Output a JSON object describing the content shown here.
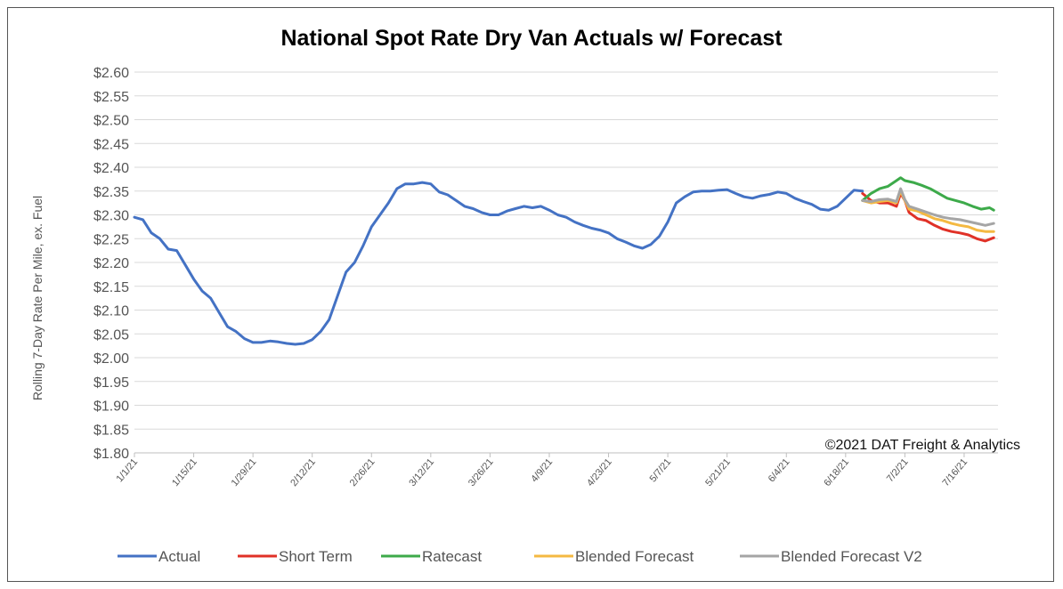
{
  "chart_data": {
    "type": "line",
    "title": "National Spot Rate Dry Van Actuals w/ Forecast",
    "ylabel": "Rolling 7-Day Rate Per Mile, ex. Fuel",
    "xlabel": "",
    "annotation": "©2021 DAT Freight & Analytics",
    "ylim": [
      1.8,
      2.6
    ],
    "xlim": [
      "2021-01-01",
      "2021-07-24"
    ],
    "y_ticks": [
      "$1.80",
      "$1.85",
      "$1.90",
      "$1.95",
      "$2.00",
      "$2.05",
      "$2.10",
      "$2.15",
      "$2.20",
      "$2.25",
      "$2.30",
      "$2.35",
      "$2.40",
      "$2.45",
      "$2.50",
      "$2.55",
      "$2.60"
    ],
    "x_ticks": [
      {
        "date": "2021-01-01",
        "label": "1/1/21"
      },
      {
        "date": "2021-01-15",
        "label": "1/15/21"
      },
      {
        "date": "2021-01-29",
        "label": "1/29/21"
      },
      {
        "date": "2021-02-12",
        "label": "2/12/21"
      },
      {
        "date": "2021-02-26",
        "label": "2/26/21"
      },
      {
        "date": "2021-03-12",
        "label": "3/12/21"
      },
      {
        "date": "2021-03-26",
        "label": "3/26/21"
      },
      {
        "date": "2021-04-09",
        "label": "4/9/21"
      },
      {
        "date": "2021-04-23",
        "label": "4/23/21"
      },
      {
        "date": "2021-05-07",
        "label": "5/7/21"
      },
      {
        "date": "2021-05-21",
        "label": "5/21/21"
      },
      {
        "date": "2021-06-04",
        "label": "6/4/21"
      },
      {
        "date": "2021-06-18",
        "label": "6/18/21"
      },
      {
        "date": "2021-07-02",
        "label": "7/2/21"
      },
      {
        "date": "2021-07-16",
        "label": "7/16/21"
      }
    ],
    "grid": true,
    "legend_position": "bottom",
    "series": [
      {
        "name": "Actual",
        "color": "#4472C4",
        "points": [
          [
            "2021-01-01",
            2.295
          ],
          [
            "2021-01-03",
            2.29
          ],
          [
            "2021-01-05",
            2.262
          ],
          [
            "2021-01-07",
            2.25
          ],
          [
            "2021-01-09",
            2.228
          ],
          [
            "2021-01-11",
            2.225
          ],
          [
            "2021-01-13",
            2.195
          ],
          [
            "2021-01-15",
            2.165
          ],
          [
            "2021-01-17",
            2.14
          ],
          [
            "2021-01-19",
            2.125
          ],
          [
            "2021-01-21",
            2.095
          ],
          [
            "2021-01-23",
            2.065
          ],
          [
            "2021-01-25",
            2.055
          ],
          [
            "2021-01-27",
            2.04
          ],
          [
            "2021-01-29",
            2.032
          ],
          [
            "2021-01-31",
            2.032
          ],
          [
            "2021-02-02",
            2.035
          ],
          [
            "2021-02-04",
            2.033
          ],
          [
            "2021-02-06",
            2.03
          ],
          [
            "2021-02-08",
            2.028
          ],
          [
            "2021-02-10",
            2.03
          ],
          [
            "2021-02-12",
            2.038
          ],
          [
            "2021-02-14",
            2.055
          ],
          [
            "2021-02-16",
            2.08
          ],
          [
            "2021-02-18",
            2.13
          ],
          [
            "2021-02-20",
            2.18
          ],
          [
            "2021-02-22",
            2.2
          ],
          [
            "2021-02-24",
            2.235
          ],
          [
            "2021-02-26",
            2.275
          ],
          [
            "2021-02-28",
            2.3
          ],
          [
            "2021-03-02",
            2.325
          ],
          [
            "2021-03-04",
            2.355
          ],
          [
            "2021-03-06",
            2.365
          ],
          [
            "2021-03-08",
            2.365
          ],
          [
            "2021-03-10",
            2.368
          ],
          [
            "2021-03-12",
            2.365
          ],
          [
            "2021-03-14",
            2.348
          ],
          [
            "2021-03-16",
            2.342
          ],
          [
            "2021-03-18",
            2.33
          ],
          [
            "2021-03-20",
            2.318
          ],
          [
            "2021-03-22",
            2.313
          ],
          [
            "2021-03-24",
            2.305
          ],
          [
            "2021-03-26",
            2.3
          ],
          [
            "2021-03-28",
            2.3
          ],
          [
            "2021-03-30",
            2.308
          ],
          [
            "2021-04-01",
            2.313
          ],
          [
            "2021-04-03",
            2.318
          ],
          [
            "2021-04-05",
            2.315
          ],
          [
            "2021-04-07",
            2.318
          ],
          [
            "2021-04-09",
            2.31
          ],
          [
            "2021-04-11",
            2.3
          ],
          [
            "2021-04-13",
            2.295
          ],
          [
            "2021-04-15",
            2.285
          ],
          [
            "2021-04-17",
            2.278
          ],
          [
            "2021-04-19",
            2.272
          ],
          [
            "2021-04-21",
            2.268
          ],
          [
            "2021-04-23",
            2.262
          ],
          [
            "2021-04-25",
            2.25
          ],
          [
            "2021-04-27",
            2.243
          ],
          [
            "2021-04-29",
            2.235
          ],
          [
            "2021-05-01",
            2.23
          ],
          [
            "2021-05-03",
            2.238
          ],
          [
            "2021-05-05",
            2.255
          ],
          [
            "2021-05-07",
            2.285
          ],
          [
            "2021-05-09",
            2.325
          ],
          [
            "2021-05-11",
            2.338
          ],
          [
            "2021-05-13",
            2.348
          ],
          [
            "2021-05-15",
            2.35
          ],
          [
            "2021-05-17",
            2.35
          ],
          [
            "2021-05-19",
            2.352
          ],
          [
            "2021-05-21",
            2.353
          ],
          [
            "2021-05-23",
            2.345
          ],
          [
            "2021-05-25",
            2.338
          ],
          [
            "2021-05-27",
            2.335
          ],
          [
            "2021-05-29",
            2.34
          ],
          [
            "2021-05-31",
            2.343
          ],
          [
            "2021-06-02",
            2.348
          ],
          [
            "2021-06-04",
            2.345
          ],
          [
            "2021-06-06",
            2.335
          ],
          [
            "2021-06-08",
            2.328
          ],
          [
            "2021-06-10",
            2.322
          ],
          [
            "2021-06-12",
            2.312
          ],
          [
            "2021-06-14",
            2.31
          ],
          [
            "2021-06-16",
            2.318
          ],
          [
            "2021-06-18",
            2.335
          ],
          [
            "2021-06-20",
            2.352
          ],
          [
            "2021-06-22",
            2.35
          ]
        ]
      },
      {
        "name": "Short Term",
        "color": "#E03127",
        "points": [
          [
            "2021-06-22",
            2.345
          ],
          [
            "2021-06-24",
            2.33
          ],
          [
            "2021-06-26",
            2.325
          ],
          [
            "2021-06-28",
            2.325
          ],
          [
            "2021-06-30",
            2.318
          ],
          [
            "2021-07-01",
            2.345
          ],
          [
            "2021-07-02",
            2.33
          ],
          [
            "2021-07-03",
            2.305
          ],
          [
            "2021-07-05",
            2.292
          ],
          [
            "2021-07-07",
            2.288
          ],
          [
            "2021-07-09",
            2.278
          ],
          [
            "2021-07-11",
            2.27
          ],
          [
            "2021-07-13",
            2.265
          ],
          [
            "2021-07-15",
            2.262
          ],
          [
            "2021-07-17",
            2.258
          ],
          [
            "2021-07-19",
            2.25
          ],
          [
            "2021-07-21",
            2.245
          ],
          [
            "2021-07-23",
            2.252
          ]
        ]
      },
      {
        "name": "Ratecast",
        "color": "#3DAA4A",
        "points": [
          [
            "2021-06-22",
            2.33
          ],
          [
            "2021-06-24",
            2.345
          ],
          [
            "2021-06-26",
            2.355
          ],
          [
            "2021-06-28",
            2.36
          ],
          [
            "2021-06-30",
            2.372
          ],
          [
            "2021-07-01",
            2.378
          ],
          [
            "2021-07-02",
            2.372
          ],
          [
            "2021-07-04",
            2.368
          ],
          [
            "2021-07-06",
            2.362
          ],
          [
            "2021-07-08",
            2.355
          ],
          [
            "2021-07-10",
            2.345
          ],
          [
            "2021-07-12",
            2.335
          ],
          [
            "2021-07-14",
            2.33
          ],
          [
            "2021-07-16",
            2.325
          ],
          [
            "2021-07-18",
            2.318
          ],
          [
            "2021-07-20",
            2.312
          ],
          [
            "2021-07-22",
            2.315
          ],
          [
            "2021-07-23",
            2.31
          ]
        ]
      },
      {
        "name": "Blended Forecast",
        "color": "#F4B942",
        "points": [
          [
            "2021-06-22",
            2.33
          ],
          [
            "2021-06-24",
            2.325
          ],
          [
            "2021-06-26",
            2.328
          ],
          [
            "2021-06-28",
            2.33
          ],
          [
            "2021-06-30",
            2.325
          ],
          [
            "2021-07-01",
            2.35
          ],
          [
            "2021-07-02",
            2.33
          ],
          [
            "2021-07-03",
            2.312
          ],
          [
            "2021-07-05",
            2.308
          ],
          [
            "2021-07-07",
            2.3
          ],
          [
            "2021-07-09",
            2.292
          ],
          [
            "2021-07-11",
            2.288
          ],
          [
            "2021-07-13",
            2.282
          ],
          [
            "2021-07-15",
            2.278
          ],
          [
            "2021-07-17",
            2.275
          ],
          [
            "2021-07-19",
            2.268
          ],
          [
            "2021-07-21",
            2.265
          ],
          [
            "2021-07-23",
            2.265
          ]
        ]
      },
      {
        "name": "Blended Forecast V2",
        "color": "#A5A5A5",
        "points": [
          [
            "2021-06-22",
            2.33
          ],
          [
            "2021-06-24",
            2.328
          ],
          [
            "2021-06-26",
            2.332
          ],
          [
            "2021-06-28",
            2.333
          ],
          [
            "2021-06-30",
            2.328
          ],
          [
            "2021-07-01",
            2.355
          ],
          [
            "2021-07-02",
            2.332
          ],
          [
            "2021-07-03",
            2.318
          ],
          [
            "2021-07-05",
            2.312
          ],
          [
            "2021-07-07",
            2.306
          ],
          [
            "2021-07-09",
            2.3
          ],
          [
            "2021-07-11",
            2.295
          ],
          [
            "2021-07-13",
            2.292
          ],
          [
            "2021-07-15",
            2.29
          ],
          [
            "2021-07-17",
            2.286
          ],
          [
            "2021-07-19",
            2.282
          ],
          [
            "2021-07-21",
            2.278
          ],
          [
            "2021-07-23",
            2.282
          ]
        ]
      }
    ]
  }
}
